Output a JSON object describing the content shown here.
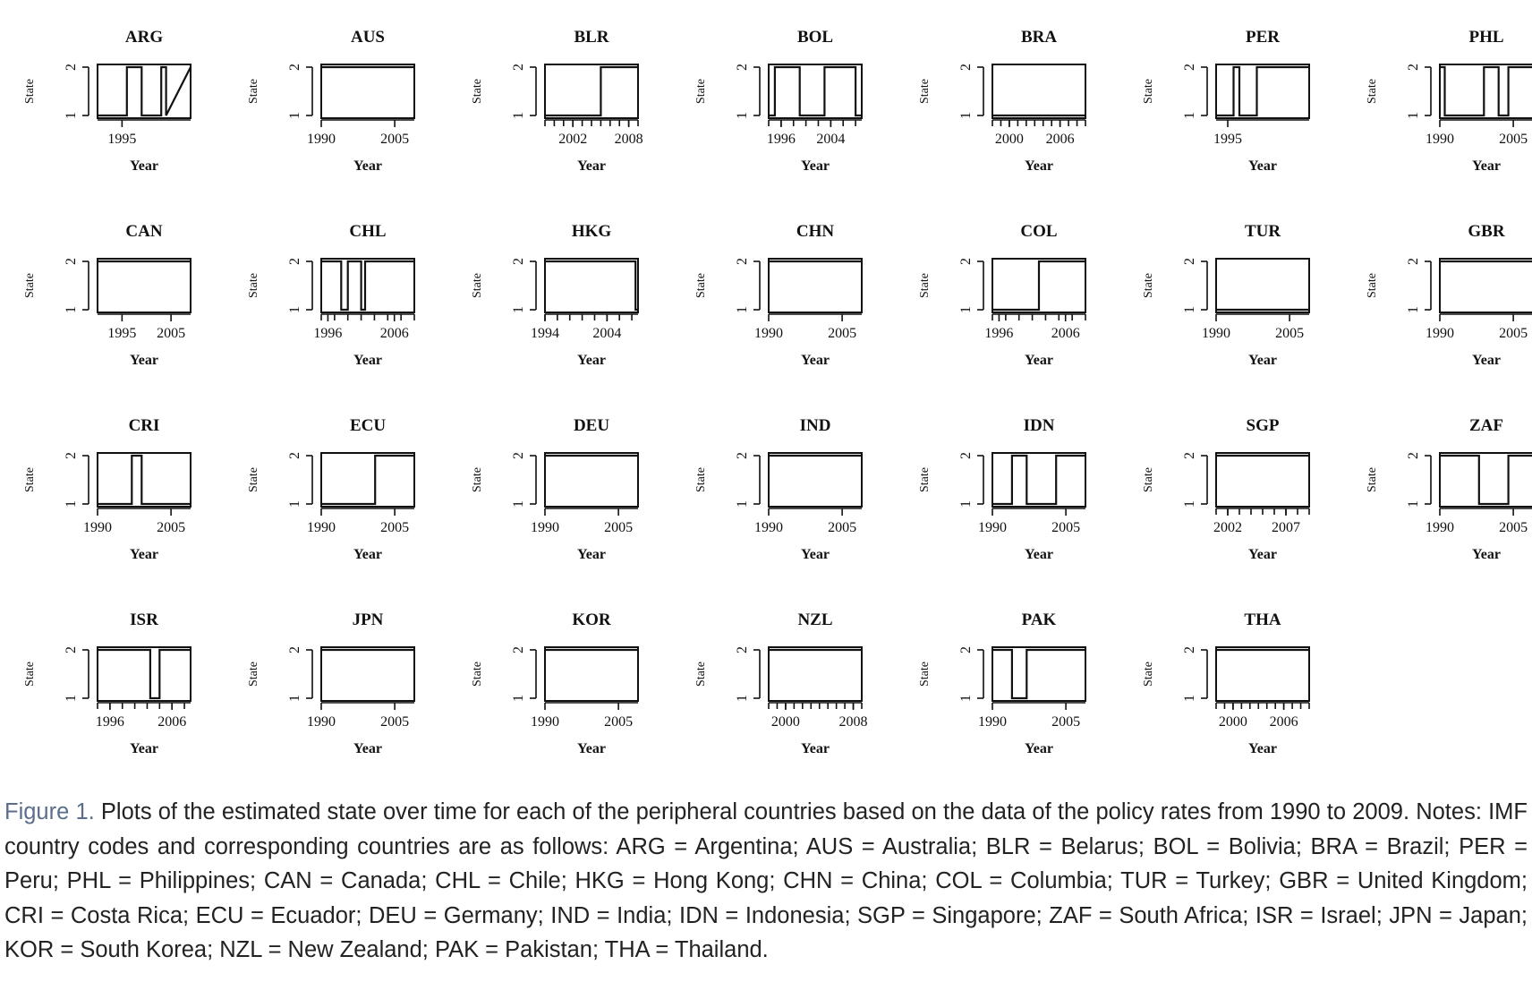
{
  "chart_data": [
    {
      "type": "line",
      "title": "ARG",
      "xlabel": "Year",
      "ylabel": "State",
      "xlim": [
        1990,
        2009
      ],
      "ylim": [
        1,
        2
      ],
      "xticks": [
        1995
      ],
      "yticks": [
        1,
        2
      ],
      "x": [
        1990,
        1996,
        1996,
        1999,
        1999,
        2003,
        2003,
        2004,
        2004,
        2009
      ],
      "y": [
        1,
        1,
        2,
        2,
        1,
        1,
        2,
        2,
        1,
        2
      ]
    },
    {
      "type": "line",
      "title": "AUS",
      "xlabel": "Year",
      "ylabel": "State",
      "xlim": [
        1990,
        2009
      ],
      "ylim": [
        1,
        2
      ],
      "xticks": [
        1990,
        2005
      ],
      "yticks": [
        1,
        2
      ],
      "x": [
        1990,
        2009
      ],
      "y": [
        2,
        2
      ]
    },
    {
      "type": "line",
      "title": "BLR",
      "xlabel": "Year",
      "ylabel": "State",
      "xlim": [
        1999,
        2009
      ],
      "ylim": [
        1,
        2
      ],
      "xticks": [
        2002,
        2008
      ],
      "yticks": [
        1,
        2
      ],
      "x": [
        1999,
        2005,
        2005,
        2009
      ],
      "y": [
        1,
        1,
        2,
        2
      ]
    },
    {
      "type": "line",
      "title": "BOL",
      "xlabel": "Year",
      "ylabel": "State",
      "xlim": [
        1994,
        2009
      ],
      "ylim": [
        1,
        2
      ],
      "xticks": [
        1996,
        2004
      ],
      "yticks": [
        1,
        2
      ],
      "x": [
        1994,
        1995,
        1995,
        1999,
        1999,
        2003,
        2003,
        2008,
        2008,
        2009
      ],
      "y": [
        1,
        1,
        2,
        2,
        1,
        1,
        2,
        2,
        1,
        1
      ]
    },
    {
      "type": "line",
      "title": "BRA",
      "xlabel": "Year",
      "ylabel": "State",
      "xlim": [
        1998,
        2009
      ],
      "ylim": [
        1,
        2
      ],
      "xticks": [
        2000,
        2006
      ],
      "yticks": [
        1,
        2
      ],
      "x": [
        1998,
        2009
      ],
      "y": [
        1,
        1
      ]
    },
    {
      "type": "line",
      "title": "PER",
      "xlabel": "Year",
      "ylabel": "State",
      "xlim": [
        1993,
        2009
      ],
      "ylim": [
        1,
        2
      ],
      "xticks": [
        1995
      ],
      "yticks": [
        1,
        2
      ],
      "x": [
        1993,
        1996,
        1996,
        1997,
        1997,
        2000,
        2000,
        2009
      ],
      "y": [
        1,
        1,
        2,
        2,
        1,
        1,
        2,
        2
      ]
    },
    {
      "type": "line",
      "title": "PHL",
      "xlabel": "Year",
      "ylabel": "State",
      "xlim": [
        1990,
        2009
      ],
      "ylim": [
        1,
        2
      ],
      "xticks": [
        1990,
        2005
      ],
      "yticks": [
        1,
        2
      ],
      "x": [
        1990,
        1991,
        1991,
        1999,
        1999,
        2002,
        2002,
        2004,
        2004,
        2009
      ],
      "y": [
        2,
        2,
        1,
        1,
        2,
        2,
        1,
        1,
        2,
        2
      ]
    },
    {
      "type": "line",
      "title": "CAN",
      "xlabel": "Year",
      "ylabel": "State",
      "xlim": [
        1990,
        2009
      ],
      "ylim": [
        1,
        2
      ],
      "xticks": [
        1995,
        2005
      ],
      "yticks": [
        1,
        2
      ],
      "x": [
        1990,
        2009
      ],
      "y": [
        2,
        2
      ]
    },
    {
      "type": "line",
      "title": "CHL",
      "xlabel": "Year",
      "ylabel": "State",
      "xlim": [
        1995,
        2009
      ],
      "ylim": [
        1,
        2
      ],
      "xticks": [
        1996,
        2006
      ],
      "yticks": [
        1,
        2
      ],
      "x": [
        1995,
        1998,
        1998,
        1999,
        1999,
        2001,
        2001,
        2001.6,
        2001.6,
        2009
      ],
      "y": [
        2,
        2,
        1,
        1,
        2,
        2,
        1,
        1,
        2,
        2
      ]
    },
    {
      "type": "line",
      "title": "HKG",
      "xlabel": "Year",
      "ylabel": "State",
      "xlim": [
        1994,
        2009
      ],
      "ylim": [
        1,
        2
      ],
      "xticks": [
        1994,
        2004
      ],
      "yticks": [
        1,
        2
      ],
      "x": [
        1994,
        2008.6,
        2008.6,
        2009
      ],
      "y": [
        2,
        2,
        1,
        1
      ]
    },
    {
      "type": "line",
      "title": "CHN",
      "xlabel": "Year",
      "ylabel": "State",
      "xlim": [
        1990,
        2009
      ],
      "ylim": [
        1,
        2
      ],
      "xticks": [
        1990,
        2005
      ],
      "yticks": [
        1,
        2
      ],
      "x": [
        1990,
        2009
      ],
      "y": [
        2,
        2
      ]
    },
    {
      "type": "line",
      "title": "COL",
      "xlabel": "Year",
      "ylabel": "State",
      "xlim": [
        1995,
        2009
      ],
      "ylim": [
        1,
        2
      ],
      "xticks": [
        1996,
        2006
      ],
      "yticks": [
        1,
        2
      ],
      "x": [
        1995,
        2002,
        2002,
        2009
      ],
      "y": [
        1,
        1,
        2,
        2
      ]
    },
    {
      "type": "line",
      "title": "TUR",
      "xlabel": "Year",
      "ylabel": "State",
      "xlim": [
        1990,
        2009
      ],
      "ylim": [
        1,
        2
      ],
      "xticks": [
        1990,
        2005
      ],
      "yticks": [
        1,
        2
      ],
      "x": [
        1990,
        2009
      ],
      "y": [
        1,
        1
      ]
    },
    {
      "type": "line",
      "title": "GBR",
      "xlabel": "Year",
      "ylabel": "State",
      "xlim": [
        1990,
        2009
      ],
      "ylim": [
        1,
        2
      ],
      "xticks": [
        1990,
        2005
      ],
      "yticks": [
        1,
        2
      ],
      "x": [
        1990,
        2009
      ],
      "y": [
        2,
        2
      ]
    },
    {
      "type": "line",
      "title": "CRI",
      "xlabel": "Year",
      "ylabel": "State",
      "xlim": [
        1990,
        2009
      ],
      "ylim": [
        1,
        2
      ],
      "xticks": [
        1990,
        2005
      ],
      "yticks": [
        1,
        2
      ],
      "x": [
        1990,
        1997,
        1997,
        1999,
        1999,
        2009
      ],
      "y": [
        1,
        1,
        2,
        2,
        1,
        1
      ]
    },
    {
      "type": "line",
      "title": "ECU",
      "xlabel": "Year",
      "ylabel": "State",
      "xlim": [
        1990,
        2009
      ],
      "ylim": [
        1,
        2
      ],
      "xticks": [
        1990,
        2005
      ],
      "yticks": [
        1,
        2
      ],
      "x": [
        1990,
        2001,
        2001,
        2009
      ],
      "y": [
        1,
        1,
        2,
        2
      ]
    },
    {
      "type": "line",
      "title": "DEU",
      "xlabel": "Year",
      "ylabel": "State",
      "xlim": [
        1990,
        2009
      ],
      "ylim": [
        1,
        2
      ],
      "xticks": [
        1990,
        2005
      ],
      "yticks": [
        1,
        2
      ],
      "x": [
        1990,
        2009
      ],
      "y": [
        2,
        2
      ]
    },
    {
      "type": "line",
      "title": "IND",
      "xlabel": "Year",
      "ylabel": "State",
      "xlim": [
        1990,
        2009
      ],
      "ylim": [
        1,
        2
      ],
      "xticks": [
        1990,
        2005
      ],
      "yticks": [
        1,
        2
      ],
      "x": [
        1990,
        2009
      ],
      "y": [
        2,
        2
      ]
    },
    {
      "type": "line",
      "title": "IDN",
      "xlabel": "Year",
      "ylabel": "State",
      "xlim": [
        1990,
        2009
      ],
      "ylim": [
        1,
        2
      ],
      "xticks": [
        1990,
        2005
      ],
      "yticks": [
        1,
        2
      ],
      "x": [
        1990,
        1994,
        1994,
        1997,
        1997,
        2003,
        2003,
        2009
      ],
      "y": [
        1,
        1,
        2,
        2,
        1,
        1,
        2,
        2
      ]
    },
    {
      "type": "line",
      "title": "SGP",
      "xlabel": "Year",
      "ylabel": "State",
      "xlim": [
        2001,
        2009
      ],
      "ylim": [
        1,
        2
      ],
      "xticks": [
        2002,
        2007
      ],
      "yticks": [
        1,
        2
      ],
      "x": [
        2001,
        2009
      ],
      "y": [
        2,
        2
      ]
    },
    {
      "type": "line",
      "title": "ZAF",
      "xlabel": "Year",
      "ylabel": "State",
      "xlim": [
        1990,
        2009
      ],
      "ylim": [
        1,
        2
      ],
      "xticks": [
        1990,
        2005
      ],
      "yticks": [
        1,
        2
      ],
      "x": [
        1990,
        1998,
        1998,
        2004,
        2004,
        2009
      ],
      "y": [
        2,
        2,
        1,
        1,
        2,
        2
      ]
    },
    {
      "type": "line",
      "title": "ISR",
      "xlabel": "Year",
      "ylabel": "State",
      "xlim": [
        1994,
        2009
      ],
      "ylim": [
        1,
        2
      ],
      "xticks": [
        1996,
        2006
      ],
      "yticks": [
        1,
        2
      ],
      "x": [
        1994,
        2002.5,
        2002.5,
        2004,
        2004,
        2009
      ],
      "y": [
        2,
        2,
        1,
        1,
        2,
        2
      ]
    },
    {
      "type": "line",
      "title": "JPN",
      "xlabel": "Year",
      "ylabel": "State",
      "xlim": [
        1990,
        2009
      ],
      "ylim": [
        1,
        2
      ],
      "xticks": [
        1990,
        2005
      ],
      "yticks": [
        1,
        2
      ],
      "x": [
        1990,
        2009
      ],
      "y": [
        2,
        2
      ]
    },
    {
      "type": "line",
      "title": "KOR",
      "xlabel": "Year",
      "ylabel": "State",
      "xlim": [
        1990,
        2009
      ],
      "ylim": [
        1,
        2
      ],
      "xticks": [
        1990,
        2005
      ],
      "yticks": [
        1,
        2
      ],
      "x": [
        1990,
        2009
      ],
      "y": [
        2,
        2
      ]
    },
    {
      "type": "line",
      "title": "NZL",
      "xlabel": "Year",
      "ylabel": "State",
      "xlim": [
        1998,
        2009
      ],
      "ylim": [
        1,
        2
      ],
      "xticks": [
        2000,
        2008
      ],
      "yticks": [
        1,
        2
      ],
      "x": [
        1998,
        2009
      ],
      "y": [
        2,
        2
      ]
    },
    {
      "type": "line",
      "title": "PAK",
      "xlabel": "Year",
      "ylabel": "State",
      "xlim": [
        1990,
        2009
      ],
      "ylim": [
        1,
        2
      ],
      "xticks": [
        1990,
        2005
      ],
      "yticks": [
        1,
        2
      ],
      "x": [
        1990,
        1994,
        1994,
        1997,
        1997,
        2009
      ],
      "y": [
        2,
        2,
        1,
        1,
        2,
        2
      ]
    },
    {
      "type": "line",
      "title": "THA",
      "xlabel": "Year",
      "ylabel": "State",
      "xlim": [
        1998,
        2009
      ],
      "ylim": [
        1,
        2
      ],
      "xticks": [
        2000,
        2006
      ],
      "yticks": [
        1,
        2
      ],
      "x": [
        1998,
        2009
      ],
      "y": [
        2,
        2
      ]
    }
  ],
  "caption": {
    "label": "Figure 1.",
    "text": " Plots of the estimated state over time for each of the peripheral countries based on the data of the policy rates from 1990 to 2009. Notes: IMF country codes and corresponding countries are as follows: ARG = Argentina; AUS = Australia; BLR = Belarus; BOL = Bolivia; BRA = Brazil; PER = Peru; PHL = Philippines; CAN = Canada; CHL = Chile; HKG = Hong Kong; CHN = China; COL = Columbia; TUR = Turkey; GBR = United Kingdom; CRI = Costa Rica; ECU = Ecuador; DEU = Germany; IND = India; IDN = Indonesia; SGP = Singapore; ZAF = South Africa; ISR = Israel; JPN = Japan; KOR = South Korea; NZL = New Zealand; PAK = Pakistan; THA = Thailand."
  }
}
